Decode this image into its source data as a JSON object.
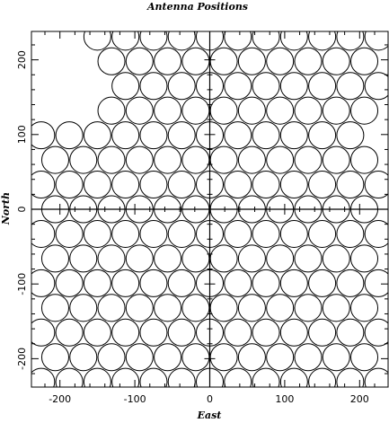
{
  "chart_data": {
    "type": "scatter",
    "title": "Antenna Positions",
    "xlabel": "East",
    "ylabel": "North",
    "xlim": [
      -238,
      238
    ],
    "ylim": [
      -238,
      238
    ],
    "xticks": [
      -200,
      -100,
      0,
      100,
      200
    ],
    "yticks": [
      -200,
      -100,
      0,
      100,
      200
    ],
    "x_tick_labels": [
      "-200",
      "-100",
      "0",
      "100",
      "200"
    ],
    "y_tick_labels": [
      "-200",
      "-100",
      "0",
      "100",
      "200"
    ],
    "grid": false,
    "marker": "open circle",
    "marker_diameter": 36,
    "row_spacing": 33,
    "col_spacing": 37.5,
    "series": [
      {
        "rows": [
          {
            "y": 231,
            "x_min": -174,
            "x_max": 238
          },
          {
            "y": 198,
            "x_min": -155,
            "x_max": 238
          },
          {
            "y": 165,
            "x_min": -135,
            "x_max": 238
          },
          {
            "y": 132,
            "x_min": -155,
            "x_max": 220
          },
          {
            "y": 99,
            "x_min": -230,
            "x_max": 200
          },
          {
            "y": 66,
            "x_min": -238,
            "x_max": 238
          },
          {
            "y": 33,
            "x_min": -238,
            "x_max": 238
          },
          {
            "y": 0,
            "x_min": -238,
            "x_max": 238
          },
          {
            "y": -33,
            "x_min": -238,
            "x_max": 238
          },
          {
            "y": -66,
            "x_min": -238,
            "x_max": 238
          },
          {
            "y": -99,
            "x_min": -238,
            "x_max": 238
          },
          {
            "y": -132,
            "x_min": -238,
            "x_max": 238
          },
          {
            "y": -165,
            "x_min": -238,
            "x_max": 238
          },
          {
            "y": -198,
            "x_min": -238,
            "x_max": 238
          },
          {
            "y": -231,
            "x_min": -238,
            "x_max": 238
          }
        ]
      }
    ]
  }
}
